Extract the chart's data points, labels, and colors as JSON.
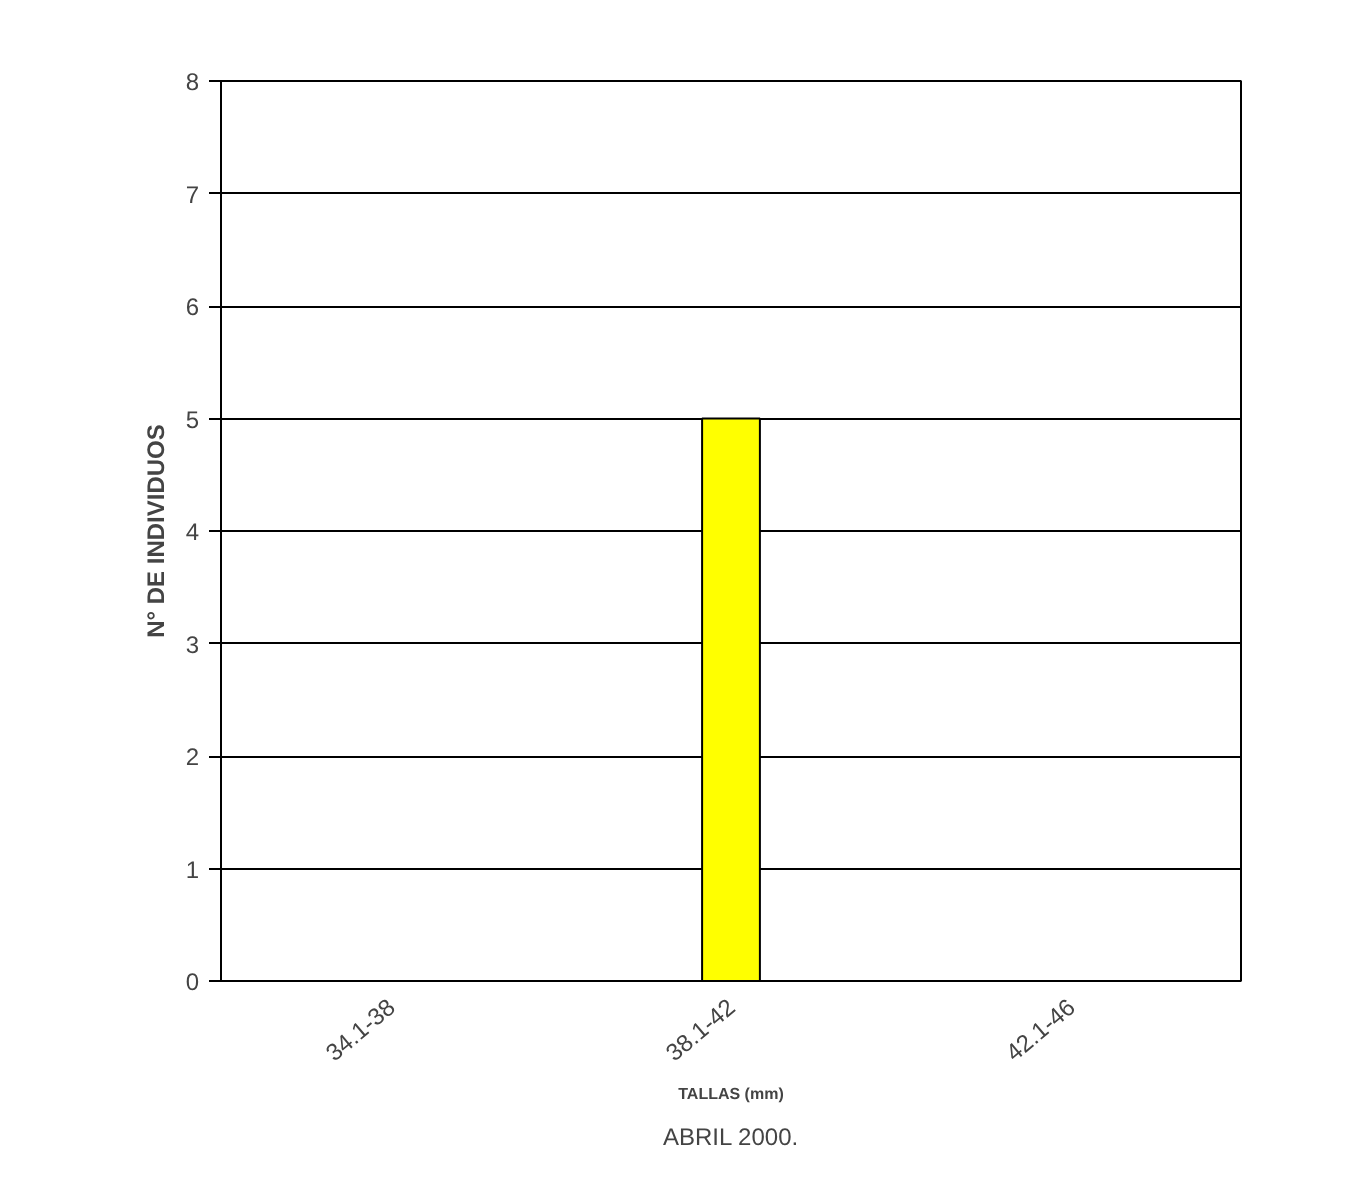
{
  "chart_data": {
    "type": "bar",
    "title": "ABRIL 2000.",
    "xlabel": "TALLAS (mm)",
    "ylabel": "N° DE INDIVIDUOS",
    "categories": [
      "34.1-38",
      "38.1-42",
      "42.1-46"
    ],
    "series": [
      {
        "color": "#ffff00",
        "values": [
          0,
          5,
          0
        ]
      }
    ],
    "ylim": [
      0,
      8
    ],
    "yticks": [
      0,
      1,
      2,
      3,
      4,
      5,
      6,
      7,
      8
    ],
    "grid": "y"
  }
}
